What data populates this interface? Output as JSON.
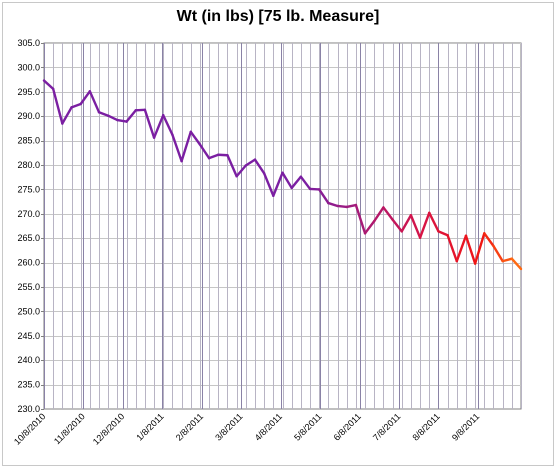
{
  "chart_data": {
    "type": "line",
    "title": "Wt (in lbs) [75 lb. Measure]",
    "xlabel": "",
    "ylabel": "",
    "ylim": [
      230,
      305
    ],
    "ytick_step": 5,
    "y_tick_labels": [
      "230.0",
      "235.0",
      "240.0",
      "245.0",
      "250.0",
      "255.0",
      "260.0",
      "265.0",
      "270.0",
      "275.0",
      "280.0",
      "285.0",
      "290.0",
      "295.0",
      "300.0",
      "305.0"
    ],
    "x_tick_labels": [
      "10/8/2010",
      "11/8/2010",
      "12/8/2010",
      "1/8/2011",
      "2/8/2011",
      "3/8/2011",
      "4/8/2011",
      "5/8/2011",
      "6/8/2011",
      "7/8/2011",
      "8/8/2011",
      "9/8/2011"
    ],
    "grid": true,
    "series": [
      {
        "color_start": "#7b1fa2",
        "color_end": "#ff6a13",
        "values": [
          297.3,
          295.6,
          288.5,
          291.8,
          292.5,
          295.1,
          290.8,
          290.1,
          289.2,
          288.9,
          291.2,
          291.3,
          285.6,
          290.2,
          286.2,
          280.8,
          286.8,
          284.2,
          281.4,
          282.1,
          282.0,
          277.7,
          279.9,
          281.1,
          278.3,
          273.7,
          278.4,
          275.3,
          277.6,
          275.1,
          275.0,
          272.2,
          271.6,
          271.4,
          271.8,
          266.0,
          268.5,
          271.3,
          268.8,
          266.4,
          269.7,
          265.1,
          270.2,
          266.4,
          265.6,
          260.3,
          265.5,
          259.8,
          266.0,
          263.4,
          260.3,
          260.8,
          258.7
        ]
      }
    ]
  }
}
